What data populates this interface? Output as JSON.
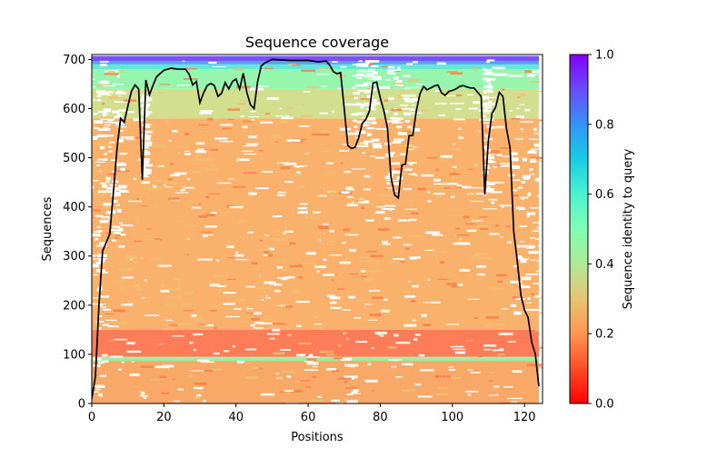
{
  "chart_data": {
    "type": "heatmap",
    "title": "Sequence coverage",
    "xlabel": "Positions",
    "ylabel": "Sequences",
    "xlim": [
      0,
      125
    ],
    "ylim": [
      0,
      710
    ],
    "x_ticks": [
      0,
      20,
      40,
      60,
      80,
      100,
      120
    ],
    "y_ticks": [
      0,
      100,
      200,
      300,
      400,
      500,
      600,
      700
    ],
    "colorbar": {
      "label": "Sequence identity to query",
      "range": [
        0.0,
        1.0
      ],
      "ticks": [
        "0.0",
        "0.2",
        "0.4",
        "0.6",
        "0.8",
        "1.0"
      ],
      "colormap": "rainbow"
    },
    "coverage_line": {
      "x": [
        0,
        1,
        2,
        3,
        5,
        6,
        7,
        8,
        9,
        10,
        11,
        12,
        13,
        14,
        15,
        16,
        17,
        18,
        20,
        22,
        24,
        26,
        27,
        28,
        29,
        30,
        31,
        32,
        33,
        34,
        35,
        36,
        37,
        38,
        39,
        40,
        41,
        42,
        43,
        44,
        45,
        46,
        47,
        48,
        50,
        55,
        60,
        63,
        65,
        66,
        67,
        68,
        69,
        70,
        71,
        72,
        73,
        74,
        75,
        76,
        77,
        78,
        79,
        80,
        81,
        82,
        83,
        84,
        85,
        86,
        87,
        88,
        89,
        90,
        91,
        92,
        93,
        94,
        95,
        96,
        97,
        98,
        99,
        100,
        101,
        102,
        103,
        104,
        105,
        106,
        107,
        108,
        109,
        110,
        111,
        112,
        113,
        114,
        115,
        116,
        117,
        118,
        119,
        120,
        121,
        122,
        123,
        124
      ],
      "y": [
        10,
        55,
        200,
        310,
        345,
        430,
        520,
        580,
        572,
        605,
        635,
        648,
        640,
        455,
        658,
        628,
        648,
        665,
        678,
        682,
        680,
        680,
        670,
        648,
        655,
        612,
        632,
        647,
        651,
        647,
        625,
        631,
        653,
        640,
        655,
        660,
        640,
        672,
        633,
        608,
        600,
        655,
        687,
        693,
        700,
        698,
        698,
        695,
        697,
        688,
        675,
        671,
        673,
        600,
        525,
        519,
        521,
        540,
        570,
        578,
        595,
        652,
        654,
        622,
        596,
        560,
        460,
        424,
        418,
        485,
        487,
        545,
        545,
        595,
        630,
        645,
        638,
        642,
        646,
        648,
        632,
        627,
        635,
        637,
        640,
        645,
        647,
        644,
        642,
        642,
        633,
        625,
        425,
        537,
        590,
        603,
        633,
        625,
        560,
        520,
        350,
        290,
        220,
        190,
        175,
        125,
        100,
        35
      ]
    }
  }
}
